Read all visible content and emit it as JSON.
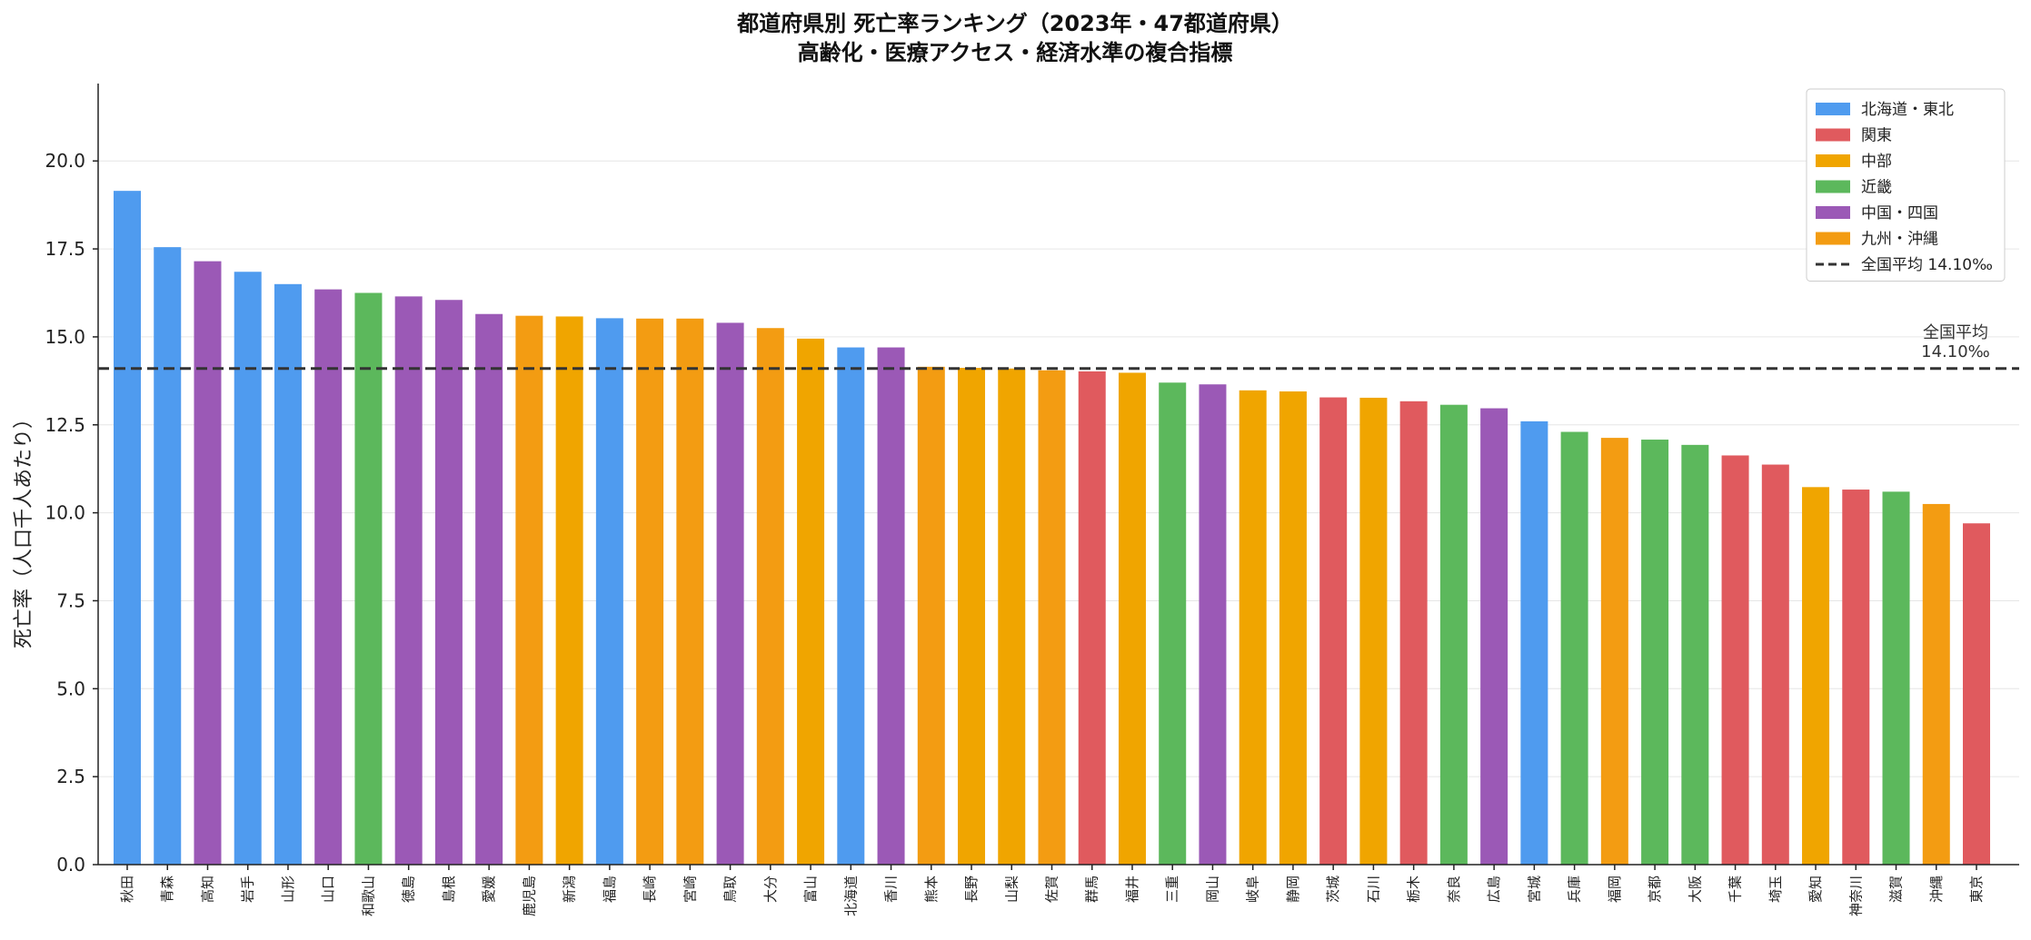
{
  "chart_data": {
    "type": "bar",
    "title": "都道府県別 死亡率ランキング（2023年・47都道府県）",
    "subtitle": "高齢化・医療アクセス・経済水準の複合指標",
    "xlabel": "",
    "ylabel": "死亡率（人口千人あたり）",
    "ylim": [
      0,
      22.2
    ],
    "yticks": [
      "0.0",
      "2.5",
      "5.0",
      "7.5",
      "10.0",
      "12.5",
      "15.0",
      "17.5",
      "20.0"
    ],
    "grid": "horizontal",
    "legend_position": "top-right",
    "regions": [
      {
        "key": "tohoku",
        "name": "北海道・東北",
        "color": "#4f9bef"
      },
      {
        "key": "kanto",
        "name": "関東",
        "color": "#e05a5e"
      },
      {
        "key": "chubu",
        "name": "中部",
        "color": "#f0a500"
      },
      {
        "key": "kinki",
        "name": "近畿",
        "color": "#5cb85c"
      },
      {
        "key": "chugoku",
        "name": "中国・四国",
        "color": "#9b59b6"
      },
      {
        "key": "kyushu",
        "name": "九州・沖縄",
        "color": "#f39c12"
      }
    ],
    "average": {
      "value": 14.1,
      "legend_label": "全国平均 14.10‰",
      "annotation_line1": "全国平均",
      "annotation_line2": "14.10‰"
    },
    "bars": [
      {
        "name": "秋田",
        "value": 19.15,
        "region": "tohoku"
      },
      {
        "name": "青森",
        "value": 17.55,
        "region": "tohoku"
      },
      {
        "name": "高知",
        "value": 17.15,
        "region": "chugoku"
      },
      {
        "name": "岩手",
        "value": 16.85,
        "region": "tohoku"
      },
      {
        "name": "山形",
        "value": 16.5,
        "region": "tohoku"
      },
      {
        "name": "山口",
        "value": 16.35,
        "region": "chugoku"
      },
      {
        "name": "和歌山",
        "value": 16.25,
        "region": "kinki"
      },
      {
        "name": "徳島",
        "value": 16.15,
        "region": "chugoku"
      },
      {
        "name": "島根",
        "value": 16.05,
        "region": "chugoku"
      },
      {
        "name": "愛媛",
        "value": 15.65,
        "region": "chugoku"
      },
      {
        "name": "鹿児島",
        "value": 15.6,
        "region": "kyushu"
      },
      {
        "name": "新潟",
        "value": 15.58,
        "region": "chubu"
      },
      {
        "name": "福島",
        "value": 15.53,
        "region": "tohoku"
      },
      {
        "name": "長崎",
        "value": 15.52,
        "region": "kyushu"
      },
      {
        "name": "宮崎",
        "value": 15.52,
        "region": "kyushu"
      },
      {
        "name": "鳥取",
        "value": 15.4,
        "region": "chugoku"
      },
      {
        "name": "大分",
        "value": 15.25,
        "region": "kyushu"
      },
      {
        "name": "富山",
        "value": 14.95,
        "region": "chubu"
      },
      {
        "name": "北海道",
        "value": 14.7,
        "region": "tohoku"
      },
      {
        "name": "香川",
        "value": 14.7,
        "region": "chugoku"
      },
      {
        "name": "熊本",
        "value": 14.15,
        "region": "kyushu"
      },
      {
        "name": "長野",
        "value": 14.12,
        "region": "chubu"
      },
      {
        "name": "山梨",
        "value": 14.1,
        "region": "chubu"
      },
      {
        "name": "佐賀",
        "value": 14.05,
        "region": "kyushu"
      },
      {
        "name": "群馬",
        "value": 14.02,
        "region": "kanto"
      },
      {
        "name": "福井",
        "value": 13.98,
        "region": "chubu"
      },
      {
        "name": "三重",
        "value": 13.7,
        "region": "kinki"
      },
      {
        "name": "岡山",
        "value": 13.65,
        "region": "chugoku"
      },
      {
        "name": "岐阜",
        "value": 13.48,
        "region": "chubu"
      },
      {
        "name": "静岡",
        "value": 13.45,
        "region": "chubu"
      },
      {
        "name": "茨城",
        "value": 13.28,
        "region": "kanto"
      },
      {
        "name": "石川",
        "value": 13.27,
        "region": "chubu"
      },
      {
        "name": "栃木",
        "value": 13.17,
        "region": "kanto"
      },
      {
        "name": "奈良",
        "value": 13.07,
        "region": "kinki"
      },
      {
        "name": "広島",
        "value": 12.97,
        "region": "chugoku"
      },
      {
        "name": "宮城",
        "value": 12.6,
        "region": "tohoku"
      },
      {
        "name": "兵庫",
        "value": 12.3,
        "region": "kinki"
      },
      {
        "name": "福岡",
        "value": 12.13,
        "region": "kyushu"
      },
      {
        "name": "京都",
        "value": 12.08,
        "region": "kinki"
      },
      {
        "name": "大阪",
        "value": 11.93,
        "region": "kinki"
      },
      {
        "name": "千葉",
        "value": 11.63,
        "region": "kanto"
      },
      {
        "name": "埼玉",
        "value": 11.37,
        "region": "kanto"
      },
      {
        "name": "愛知",
        "value": 10.73,
        "region": "chubu"
      },
      {
        "name": "神奈川",
        "value": 10.66,
        "region": "kanto"
      },
      {
        "name": "滋賀",
        "value": 10.6,
        "region": "kinki"
      },
      {
        "name": "沖縄",
        "value": 10.25,
        "region": "kyushu"
      },
      {
        "name": "東京",
        "value": 9.7,
        "region": "kanto"
      }
    ]
  }
}
